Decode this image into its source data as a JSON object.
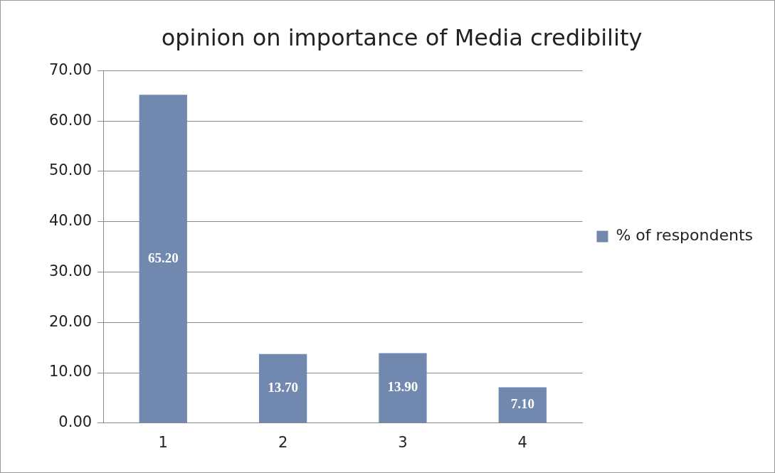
{
  "chart_data": {
    "type": "bar",
    "title": "opinion on importance of Media credibility",
    "categories": [
      "1",
      "2",
      "3",
      "4"
    ],
    "series": [
      {
        "name": "% of respondents",
        "color": "#7189af",
        "values": [
          65.2,
          13.7,
          13.9,
          7.1
        ],
        "value_labels": [
          "65.20",
          "13.70",
          "13.90",
          "7.10"
        ]
      }
    ],
    "ylim": [
      0,
      70
    ],
    "yticks": [
      {
        "value": 0,
        "label": "0.00"
      },
      {
        "value": 10,
        "label": "10.00"
      },
      {
        "value": 20,
        "label": "20.00"
      },
      {
        "value": 30,
        "label": "30.00"
      },
      {
        "value": 40,
        "label": "40.00"
      },
      {
        "value": 50,
        "label": "50.00"
      },
      {
        "value": 60,
        "label": "60.00"
      },
      {
        "value": 70,
        "label": "70.00"
      }
    ],
    "grid": "y",
    "legend": "right"
  }
}
